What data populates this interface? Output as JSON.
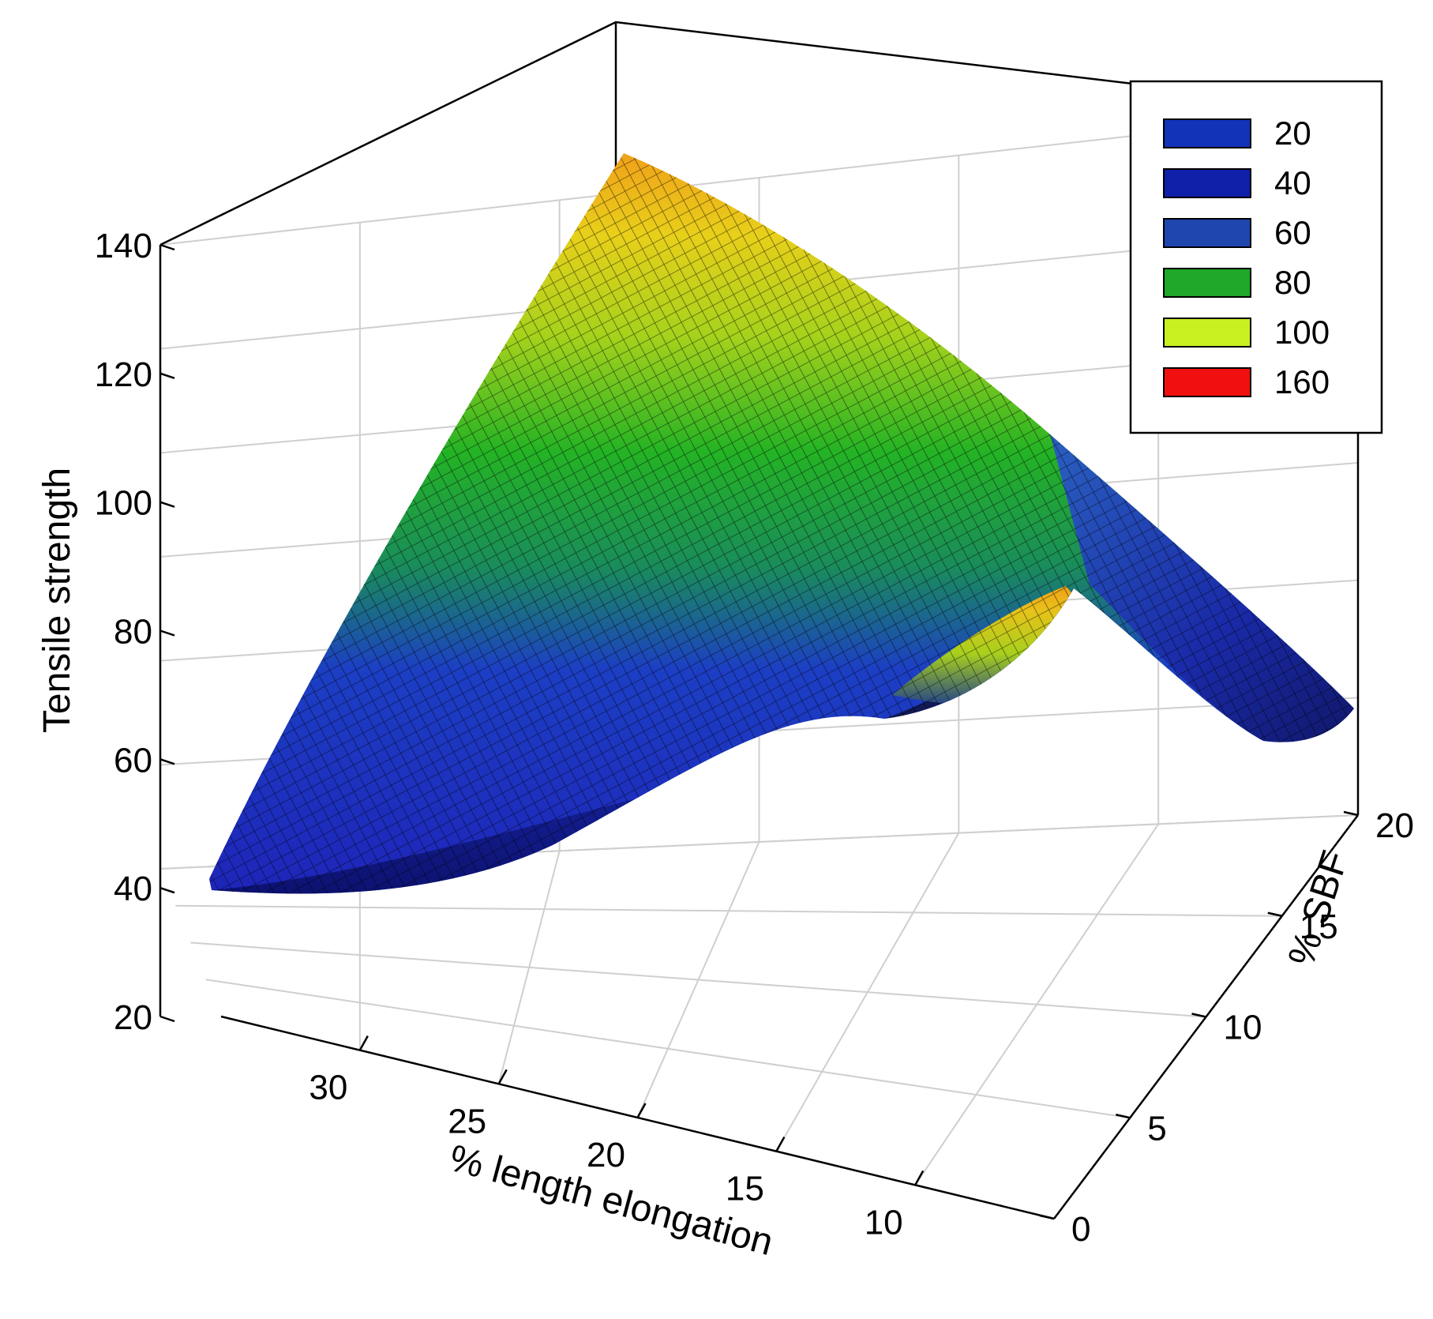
{
  "chart_data": {
    "type": "surface",
    "x_axis": {
      "label": "%  length elongation",
      "ticks": [
        30,
        25,
        20,
        15,
        10
      ],
      "range": [
        35,
        5
      ]
    },
    "y_axis": {
      "label": "% SBF",
      "ticks": [
        0,
        5,
        10,
        15,
        20
      ],
      "range": [
        0,
        20
      ]
    },
    "z_axis": {
      "label": "Tensile strength",
      "ticks": [
        20,
        40,
        60,
        80,
        100,
        120,
        140
      ],
      "range": [
        20,
        140
      ]
    },
    "surface_points": [
      {
        "x": 35,
        "y": 0,
        "z": 40
      },
      {
        "x": 35,
        "y": 20,
        "z": 128
      },
      {
        "x": 5,
        "y": 20,
        "z": 65
      },
      {
        "x": 5,
        "y": 0,
        "z": 62
      },
      {
        "x": 12,
        "y": 7,
        "z": 95
      }
    ],
    "legend": {
      "position": "top-right",
      "entries": [
        {
          "label": "20",
          "color": "#1232b8"
        },
        {
          "label": "40",
          "color": "#0f1fa8"
        },
        {
          "label": "60",
          "color": "#1e46ad"
        },
        {
          "label": "80",
          "color": "#1fa82a"
        },
        {
          "label": "100",
          "color": "#c8f020"
        },
        {
          "label": "160",
          "color": "#f01010"
        }
      ]
    },
    "grid": true
  }
}
